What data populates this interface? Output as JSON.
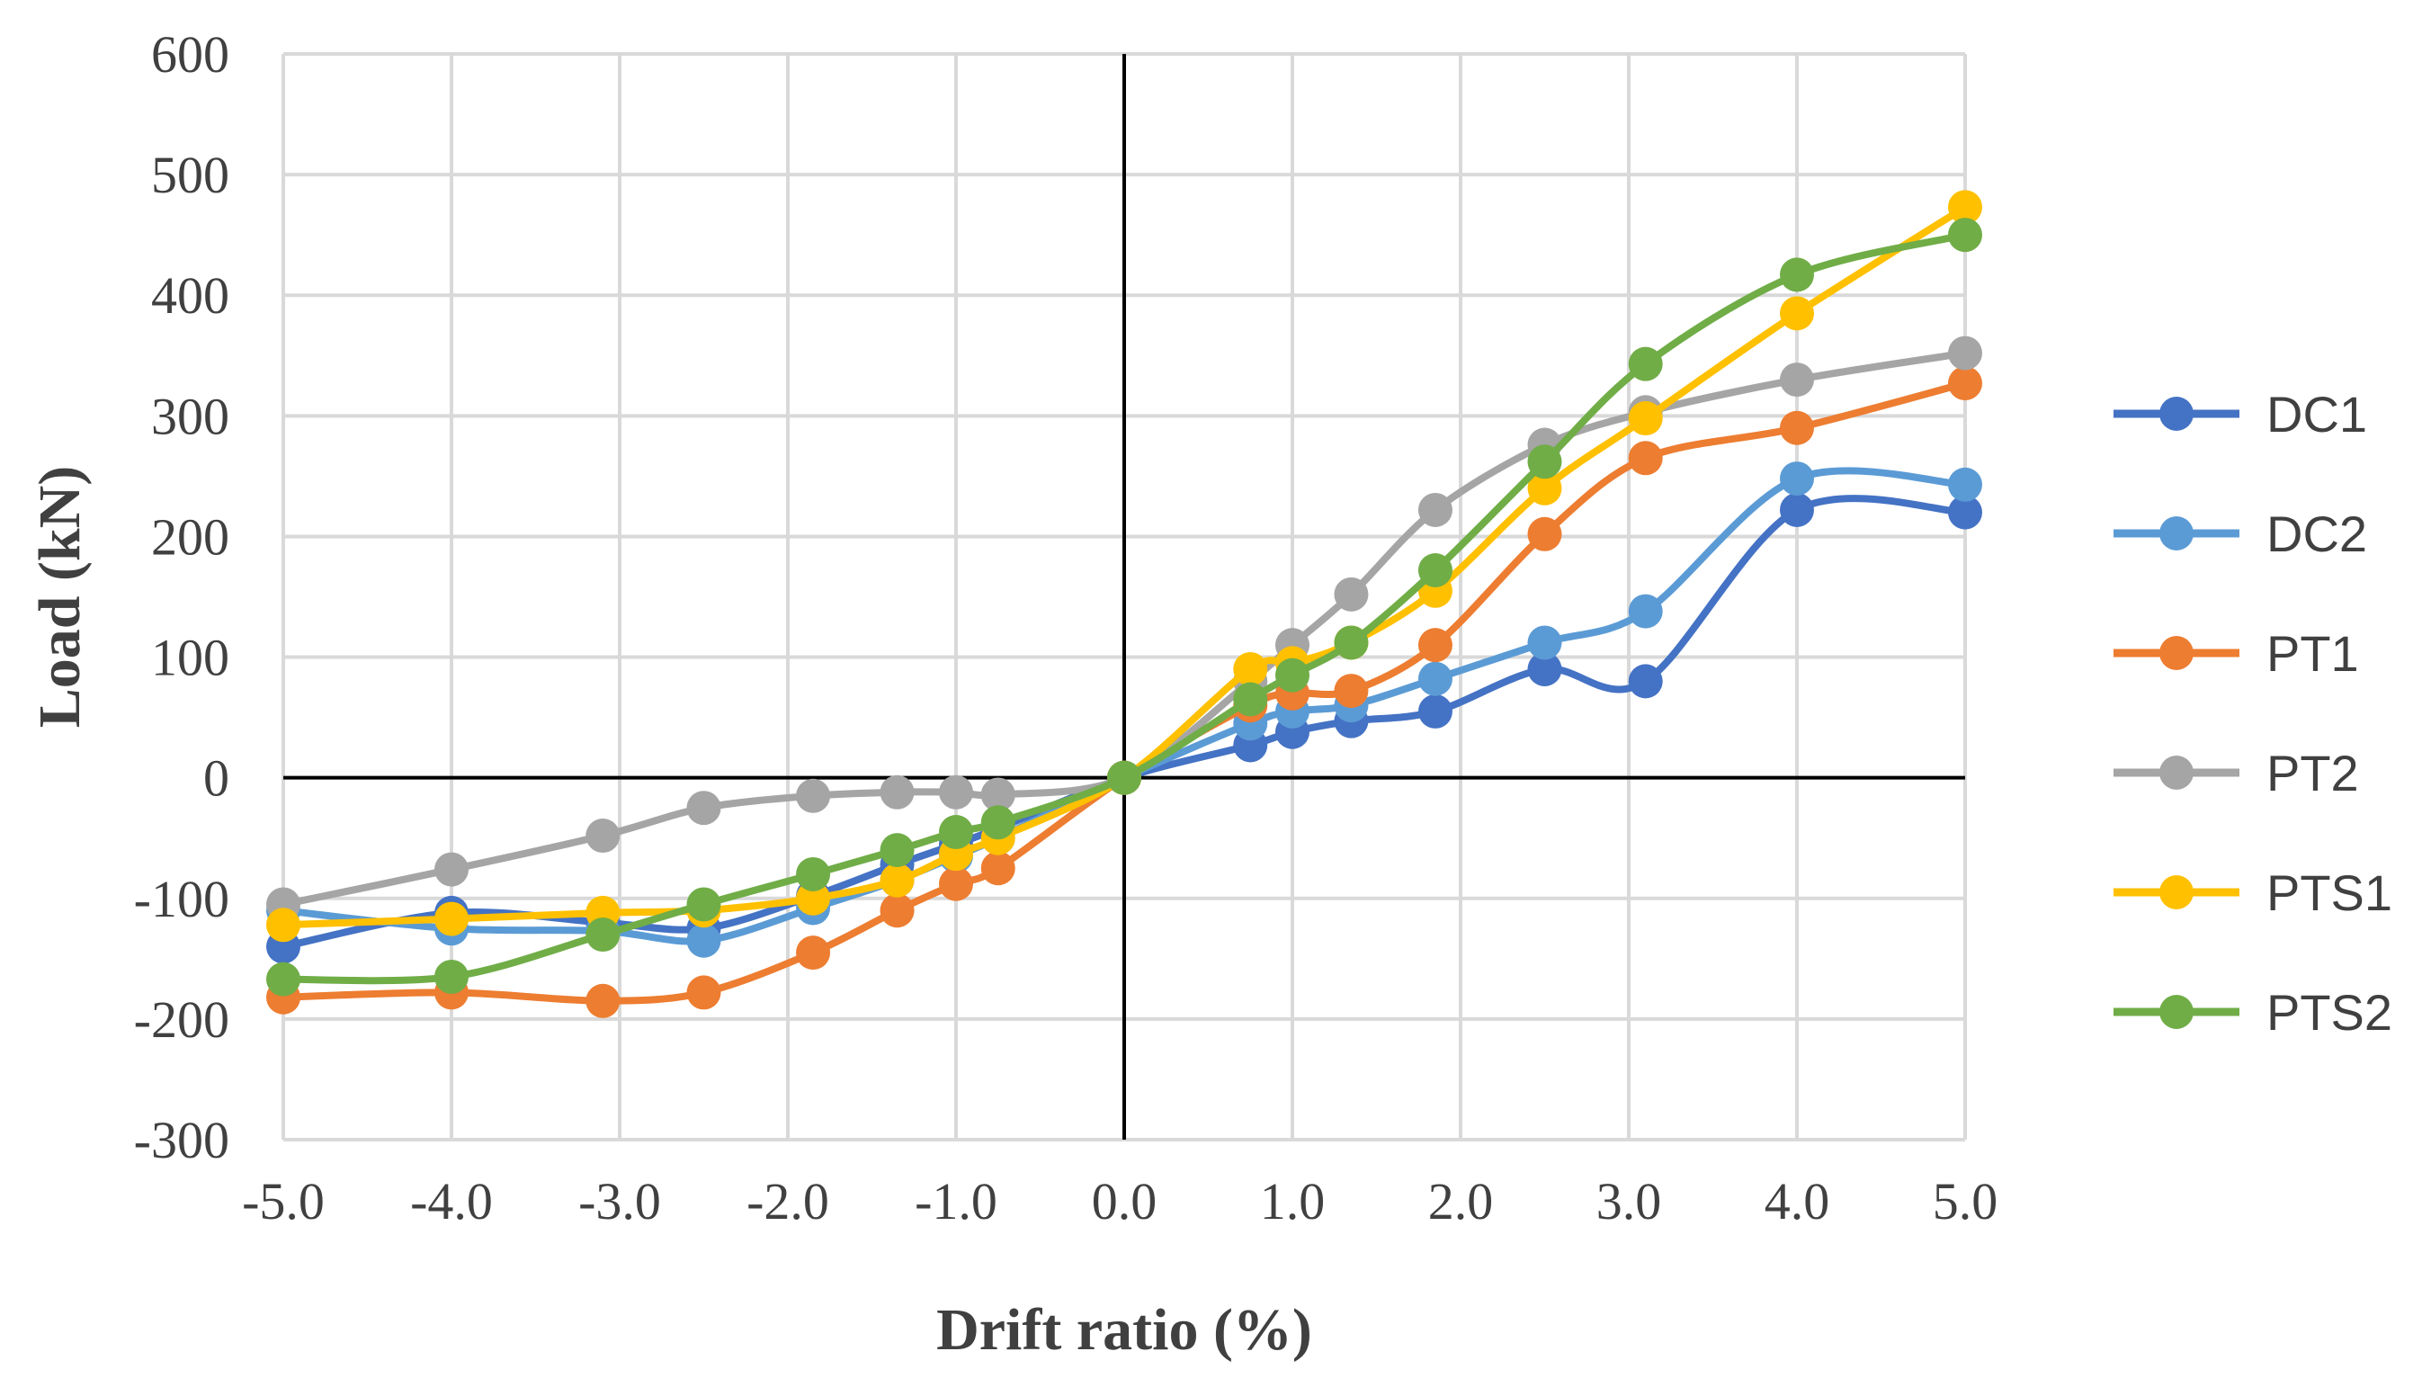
{
  "chart_data": {
    "type": "line",
    "title": "",
    "xlabel": "Drift ratio (%)",
    "ylabel": "Load (kN)",
    "xlim": [
      -5.0,
      5.0
    ],
    "ylim": [
      -300,
      600
    ],
    "x_ticks": [
      -5.0,
      -4.0,
      -3.0,
      -2.0,
      -1.0,
      0.0,
      1.0,
      2.0,
      3.0,
      4.0,
      5.0
    ],
    "x_tick_labels": [
      "-5.0",
      "-4.0",
      "-3.0",
      "-2.0",
      "-1.0",
      "0.0",
      "1.0",
      "2.0",
      "3.0",
      "4.0",
      "5.0"
    ],
    "y_ticks": [
      -300,
      -200,
      -100,
      0,
      100,
      200,
      300,
      400,
      500,
      600
    ],
    "y_tick_labels": [
      "-300",
      "-200",
      "-100",
      "0",
      "100",
      "200",
      "300",
      "400",
      "500",
      "600"
    ],
    "grid": true,
    "legend_position": "right",
    "series": [
      {
        "name": "DC1",
        "color": "#4472C4",
        "x": [
          -5.0,
          -4.0,
          -3.1,
          -2.5,
          -1.85,
          -1.35,
          -1.0,
          -0.75,
          0.0,
          0.75,
          1.0,
          1.35,
          1.85,
          2.5,
          3.1,
          4.0,
          5.0
        ],
        "y": [
          -140,
          -112,
          -120,
          -125,
          -98,
          -72,
          -55,
          -42,
          0,
          27,
          38,
          47,
          55,
          90,
          80,
          222,
          220
        ]
      },
      {
        "name": "DC2",
        "color": "#5B9BD5",
        "x": [
          -5.0,
          -4.0,
          -3.1,
          -2.5,
          -1.85,
          -1.35,
          -1.0,
          -0.75,
          0.0,
          0.75,
          1.0,
          1.35,
          1.85,
          2.5,
          3.1,
          4.0,
          5.0
        ],
        "y": [
          -110,
          -125,
          -127,
          -135,
          -108,
          -85,
          -65,
          -50,
          0,
          45,
          55,
          60,
          82,
          112,
          138,
          248,
          243
        ]
      },
      {
        "name": "PT1",
        "color": "#ED7D31",
        "x": [
          -5.0,
          -4.0,
          -3.1,
          -2.5,
          -1.85,
          -1.35,
          -1.0,
          -0.75,
          0.0,
          0.75,
          1.0,
          1.35,
          1.85,
          2.5,
          3.1,
          4.0,
          5.0
        ],
        "y": [
          -182,
          -178,
          -185,
          -178,
          -145,
          -110,
          -88,
          -75,
          0,
          60,
          70,
          72,
          110,
          202,
          265,
          290,
          327
        ]
      },
      {
        "name": "PT2",
        "color": "#A5A5A5",
        "x": [
          -5.0,
          -4.0,
          -3.1,
          -2.5,
          -1.85,
          -1.35,
          -1.0,
          -0.75,
          0.0,
          0.75,
          1.0,
          1.35,
          1.85,
          2.5,
          3.1,
          4.0,
          5.0
        ],
        "y": [
          -105,
          -76,
          -48,
          -25,
          -15,
          -12,
          -12,
          -14,
          0,
          80,
          110,
          152,
          222,
          276,
          303,
          330,
          352
        ]
      },
      {
        "name": "PTS1",
        "color": "#FFC000",
        "x": [
          -5.0,
          -4.0,
          -3.1,
          -2.5,
          -1.85,
          -1.35,
          -1.0,
          -0.75,
          0.0,
          0.75,
          1.0,
          1.35,
          1.85,
          2.5,
          3.1,
          4.0,
          5.0
        ],
        "y": [
          -122,
          -117,
          -112,
          -110,
          -100,
          -85,
          -63,
          -50,
          0,
          90,
          95,
          112,
          155,
          240,
          298,
          385,
          473
        ]
      },
      {
        "name": "PTS2",
        "color": "#70AD47",
        "x": [
          -5.0,
          -4.0,
          -3.1,
          -2.5,
          -1.85,
          -1.35,
          -1.0,
          -0.75,
          0.0,
          0.75,
          1.0,
          1.35,
          1.85,
          2.5,
          3.1,
          4.0,
          5.0
        ],
        "y": [
          -167,
          -165,
          -130,
          -105,
          -80,
          -60,
          -45,
          -37,
          0,
          65,
          85,
          112,
          172,
          262,
          343,
          417,
          450
        ]
      }
    ]
  }
}
